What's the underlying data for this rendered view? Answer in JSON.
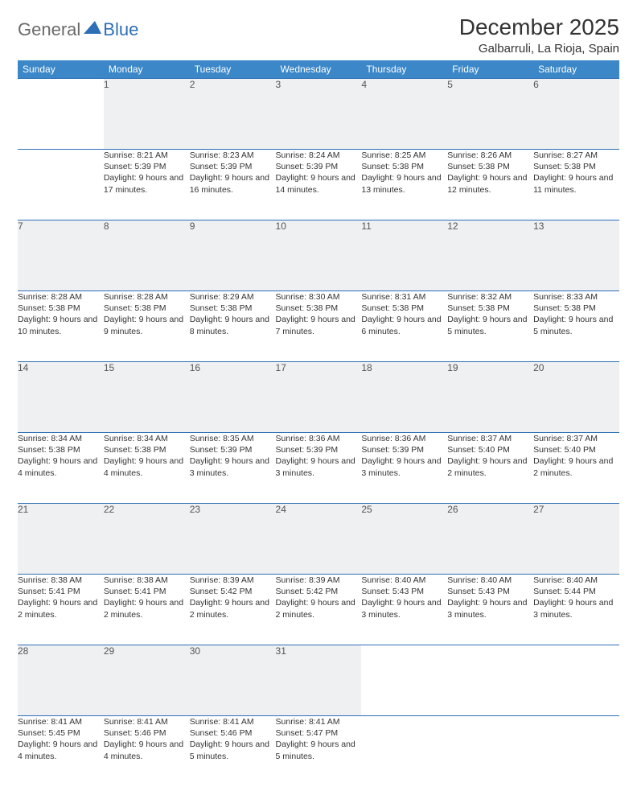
{
  "brand": {
    "part1": "General",
    "part2": "Blue",
    "mark_color": "#2d6fb6"
  },
  "title": "December 2025",
  "location": "Galbarruli, La Rioja, Spain",
  "colors": {
    "header_bg": "#3b87c8",
    "header_text": "#ffffff",
    "daynum_bg": "#eef0f2",
    "rule": "#2d6fb6",
    "text": "#333333"
  },
  "weekdays": [
    "Sunday",
    "Monday",
    "Tuesday",
    "Wednesday",
    "Thursday",
    "Friday",
    "Saturday"
  ],
  "weeks": [
    [
      null,
      {
        "n": "1",
        "sr": "8:21 AM",
        "ss": "5:39 PM",
        "dl": "9 hours and 17 minutes."
      },
      {
        "n": "2",
        "sr": "8:23 AM",
        "ss": "5:39 PM",
        "dl": "9 hours and 16 minutes."
      },
      {
        "n": "3",
        "sr": "8:24 AM",
        "ss": "5:39 PM",
        "dl": "9 hours and 14 minutes."
      },
      {
        "n": "4",
        "sr": "8:25 AM",
        "ss": "5:38 PM",
        "dl": "9 hours and 13 minutes."
      },
      {
        "n": "5",
        "sr": "8:26 AM",
        "ss": "5:38 PM",
        "dl": "9 hours and 12 minutes."
      },
      {
        "n": "6",
        "sr": "8:27 AM",
        "ss": "5:38 PM",
        "dl": "9 hours and 11 minutes."
      }
    ],
    [
      {
        "n": "7",
        "sr": "8:28 AM",
        "ss": "5:38 PM",
        "dl": "9 hours and 10 minutes."
      },
      {
        "n": "8",
        "sr": "8:28 AM",
        "ss": "5:38 PM",
        "dl": "9 hours and 9 minutes."
      },
      {
        "n": "9",
        "sr": "8:29 AM",
        "ss": "5:38 PM",
        "dl": "9 hours and 8 minutes."
      },
      {
        "n": "10",
        "sr": "8:30 AM",
        "ss": "5:38 PM",
        "dl": "9 hours and 7 minutes."
      },
      {
        "n": "11",
        "sr": "8:31 AM",
        "ss": "5:38 PM",
        "dl": "9 hours and 6 minutes."
      },
      {
        "n": "12",
        "sr": "8:32 AM",
        "ss": "5:38 PM",
        "dl": "9 hours and 5 minutes."
      },
      {
        "n": "13",
        "sr": "8:33 AM",
        "ss": "5:38 PM",
        "dl": "9 hours and 5 minutes."
      }
    ],
    [
      {
        "n": "14",
        "sr": "8:34 AM",
        "ss": "5:38 PM",
        "dl": "9 hours and 4 minutes."
      },
      {
        "n": "15",
        "sr": "8:34 AM",
        "ss": "5:38 PM",
        "dl": "9 hours and 4 minutes."
      },
      {
        "n": "16",
        "sr": "8:35 AM",
        "ss": "5:39 PM",
        "dl": "9 hours and 3 minutes."
      },
      {
        "n": "17",
        "sr": "8:36 AM",
        "ss": "5:39 PM",
        "dl": "9 hours and 3 minutes."
      },
      {
        "n": "18",
        "sr": "8:36 AM",
        "ss": "5:39 PM",
        "dl": "9 hours and 3 minutes."
      },
      {
        "n": "19",
        "sr": "8:37 AM",
        "ss": "5:40 PM",
        "dl": "9 hours and 2 minutes."
      },
      {
        "n": "20",
        "sr": "8:37 AM",
        "ss": "5:40 PM",
        "dl": "9 hours and 2 minutes."
      }
    ],
    [
      {
        "n": "21",
        "sr": "8:38 AM",
        "ss": "5:41 PM",
        "dl": "9 hours and 2 minutes."
      },
      {
        "n": "22",
        "sr": "8:38 AM",
        "ss": "5:41 PM",
        "dl": "9 hours and 2 minutes."
      },
      {
        "n": "23",
        "sr": "8:39 AM",
        "ss": "5:42 PM",
        "dl": "9 hours and 2 minutes."
      },
      {
        "n": "24",
        "sr": "8:39 AM",
        "ss": "5:42 PM",
        "dl": "9 hours and 2 minutes."
      },
      {
        "n": "25",
        "sr": "8:40 AM",
        "ss": "5:43 PM",
        "dl": "9 hours and 3 minutes."
      },
      {
        "n": "26",
        "sr": "8:40 AM",
        "ss": "5:43 PM",
        "dl": "9 hours and 3 minutes."
      },
      {
        "n": "27",
        "sr": "8:40 AM",
        "ss": "5:44 PM",
        "dl": "9 hours and 3 minutes."
      }
    ],
    [
      {
        "n": "28",
        "sr": "8:41 AM",
        "ss": "5:45 PM",
        "dl": "9 hours and 4 minutes."
      },
      {
        "n": "29",
        "sr": "8:41 AM",
        "ss": "5:46 PM",
        "dl": "9 hours and 4 minutes."
      },
      {
        "n": "30",
        "sr": "8:41 AM",
        "ss": "5:46 PM",
        "dl": "9 hours and 5 minutes."
      },
      {
        "n": "31",
        "sr": "8:41 AM",
        "ss": "5:47 PM",
        "dl": "9 hours and 5 minutes."
      },
      null,
      null,
      null
    ]
  ],
  "labels": {
    "sunrise": "Sunrise:",
    "sunset": "Sunset:",
    "daylight": "Daylight:"
  }
}
